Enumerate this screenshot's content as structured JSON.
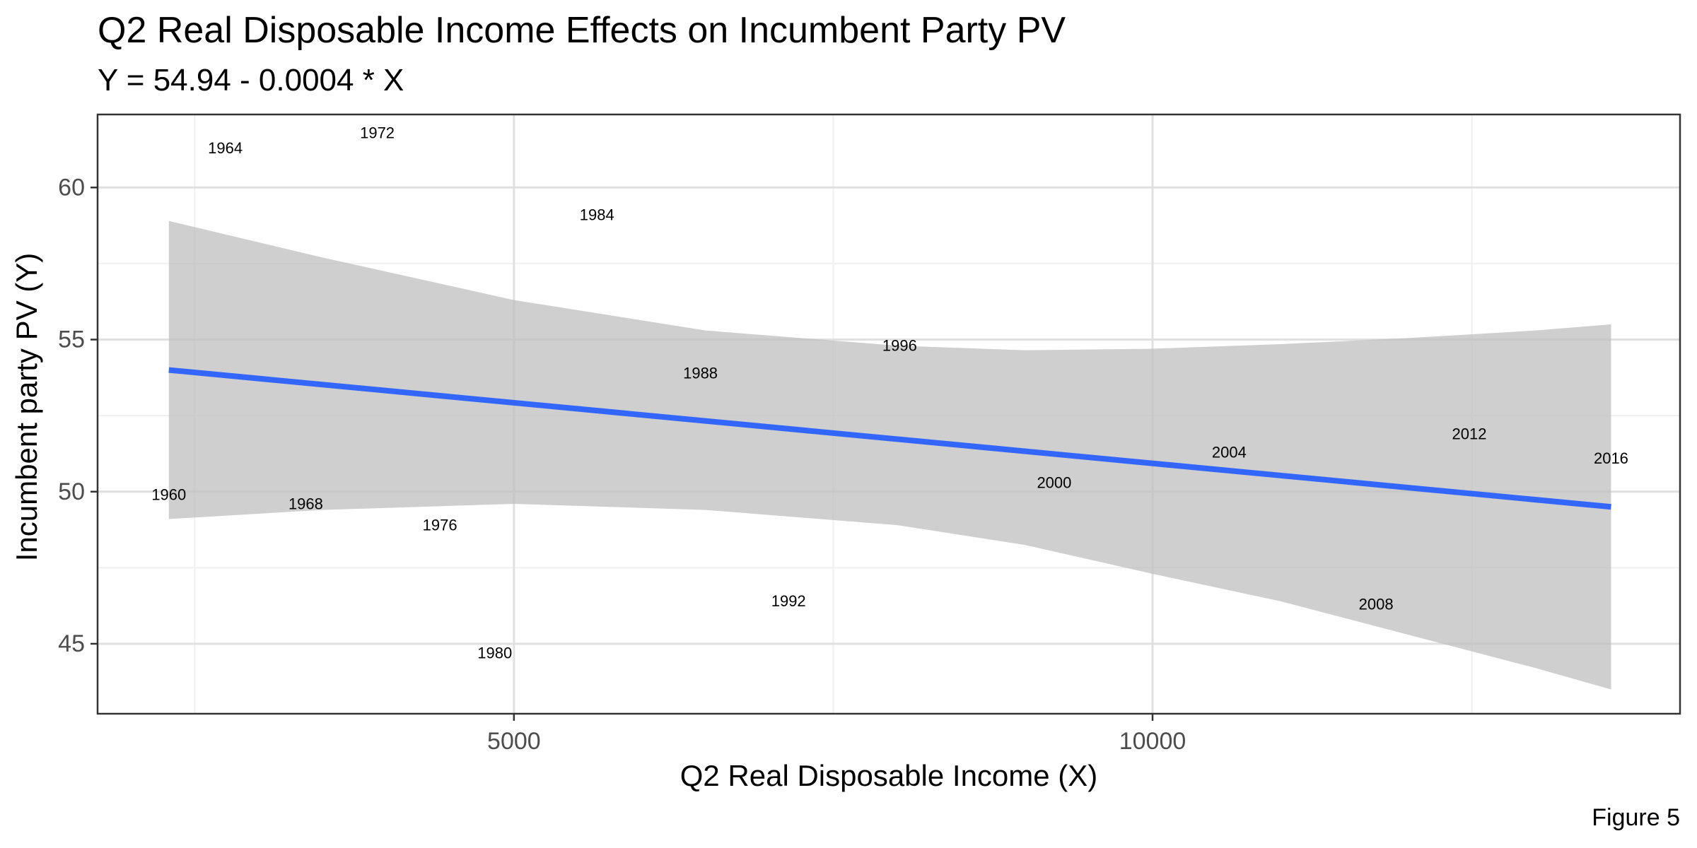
{
  "chart_data": {
    "type": "scatter",
    "title": "Q2 Real Disposable Income Effects on Incumbent Party PV",
    "subtitle": "Y = 54.94 - 0.0004 * X",
    "xlabel": "Q2 Real Disposable Income (X)",
    "ylabel": "Incumbent party PV (Y)",
    "caption": "Figure 5",
    "xlim": [
      1740,
      14130
    ],
    "ylim": [
      42.7,
      62.4
    ],
    "xticks": [
      5000,
      10000
    ],
    "xticks_minor": [
      2500,
      7500,
      12500
    ],
    "yticks": [
      45,
      50,
      55,
      60
    ],
    "yticks_minor": [
      47.5,
      52.5,
      57.5
    ],
    "grid": true,
    "points": [
      {
        "label": "1960",
        "x": 2298,
        "y": 49.9
      },
      {
        "label": "1964",
        "x": 2740,
        "y": 61.3
      },
      {
        "label": "1968",
        "x": 3370,
        "y": 49.6
      },
      {
        "label": "1972",
        "x": 3930,
        "y": 61.8
      },
      {
        "label": "1976",
        "x": 4420,
        "y": 48.9
      },
      {
        "label": "1980",
        "x": 4850,
        "y": 44.7
      },
      {
        "label": "1984",
        "x": 5650,
        "y": 59.1
      },
      {
        "label": "1988",
        "x": 6460,
        "y": 53.9
      },
      {
        "label": "1992",
        "x": 7150,
        "y": 46.4
      },
      {
        "label": "1996",
        "x": 8020,
        "y": 54.8
      },
      {
        "label": "2000",
        "x": 9230,
        "y": 50.3
      },
      {
        "label": "2004",
        "x": 10600,
        "y": 51.3
      },
      {
        "label": "2008",
        "x": 11750,
        "y": 46.3
      },
      {
        "label": "2012",
        "x": 12480,
        "y": 51.9
      },
      {
        "label": "2016",
        "x": 13590,
        "y": 51.1
      }
    ],
    "fit": {
      "x": [
        2298,
        13590
      ],
      "y": [
        54.0,
        49.5
      ]
    },
    "ci_band": {
      "x": [
        2298,
        3500,
        5000,
        6500,
        8000,
        9000,
        10000,
        11000,
        12000,
        13000,
        13590
      ],
      "upper": [
        58.9,
        57.7,
        56.3,
        55.3,
        54.8,
        54.65,
        54.7,
        54.85,
        55.05,
        55.3,
        55.5
      ],
      "lower": [
        49.1,
        49.4,
        49.6,
        49.4,
        48.9,
        48.25,
        47.3,
        46.4,
        45.3,
        44.2,
        43.5
      ]
    },
    "colors": {
      "fit_line": "#3366ff",
      "ci_band": "#bdbdbd",
      "grid_major": "#e0e0e0",
      "grid_minor": "#f0f0f0",
      "panel_border": "#333333"
    }
  }
}
